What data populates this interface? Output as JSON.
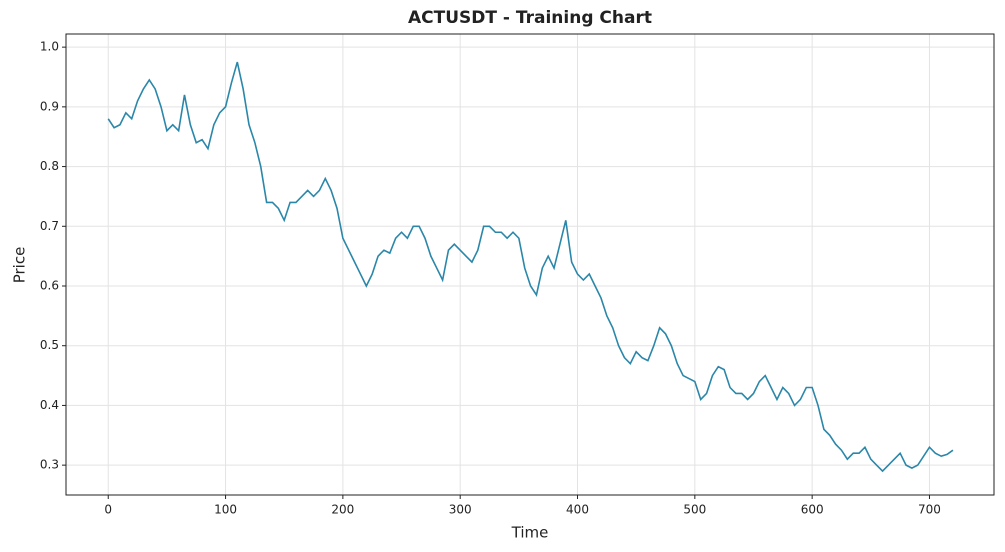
{
  "chart_data": {
    "type": "line",
    "title": "ACTUSDT - Training Chart",
    "x_label": "Time",
    "y_label": "Price",
    "x": [
      0,
      5,
      10,
      15,
      20,
      25,
      30,
      35,
      40,
      45,
      50,
      55,
      60,
      65,
      70,
      75,
      80,
      85,
      90,
      95,
      100,
      105,
      110,
      115,
      120,
      125,
      130,
      135,
      140,
      145,
      150,
      155,
      160,
      165,
      170,
      175,
      180,
      185,
      190,
      195,
      200,
      205,
      210,
      215,
      220,
      225,
      230,
      235,
      240,
      245,
      250,
      255,
      260,
      265,
      270,
      275,
      280,
      285,
      290,
      295,
      300,
      305,
      310,
      315,
      320,
      325,
      330,
      335,
      340,
      345,
      350,
      355,
      360,
      365,
      370,
      375,
      380,
      385,
      390,
      395,
      400,
      405,
      410,
      415,
      420,
      425,
      430,
      435,
      440,
      445,
      450,
      455,
      460,
      465,
      470,
      475,
      480,
      485,
      490,
      495,
      500,
      505,
      510,
      515,
      520,
      525,
      530,
      535,
      540,
      545,
      550,
      555,
      560,
      565,
      570,
      575,
      580,
      585,
      590,
      595,
      600,
      605,
      610,
      615,
      620,
      625,
      630,
      635,
      640,
      645,
      650,
      655,
      660,
      665,
      670,
      675,
      680,
      685,
      690,
      695,
      700,
      705,
      710,
      715,
      720
    ],
    "series": [
      {
        "name": "ACTUSDT",
        "color": "#2b87a9",
        "values": [
          0.88,
          0.865,
          0.87,
          0.89,
          0.88,
          0.91,
          0.93,
          0.945,
          0.93,
          0.9,
          0.86,
          0.87,
          0.86,
          0.92,
          0.87,
          0.84,
          0.845,
          0.83,
          0.87,
          0.89,
          0.9,
          0.94,
          0.975,
          0.93,
          0.87,
          0.84,
          0.8,
          0.74,
          0.74,
          0.73,
          0.71,
          0.74,
          0.74,
          0.75,
          0.76,
          0.75,
          0.76,
          0.78,
          0.76,
          0.73,
          0.68,
          0.66,
          0.64,
          0.62,
          0.6,
          0.62,
          0.65,
          0.66,
          0.655,
          0.68,
          0.69,
          0.68,
          0.7,
          0.7,
          0.68,
          0.65,
          0.63,
          0.61,
          0.66,
          0.67,
          0.66,
          0.65,
          0.64,
          0.66,
          0.7,
          0.7,
          0.69,
          0.69,
          0.68,
          0.69,
          0.68,
          0.63,
          0.6,
          0.585,
          0.63,
          0.65,
          0.63,
          0.67,
          0.71,
          0.64,
          0.62,
          0.61,
          0.62,
          0.6,
          0.58,
          0.55,
          0.53,
          0.5,
          0.48,
          0.47,
          0.49,
          0.48,
          0.475,
          0.5,
          0.53,
          0.52,
          0.5,
          0.47,
          0.45,
          0.445,
          0.44,
          0.41,
          0.42,
          0.45,
          0.465,
          0.46,
          0.43,
          0.42,
          0.42,
          0.41,
          0.42,
          0.44,
          0.45,
          0.43,
          0.41,
          0.43,
          0.42,
          0.4,
          0.41,
          0.43,
          0.43,
          0.4,
          0.36,
          0.35,
          0.335,
          0.325,
          0.31,
          0.32,
          0.32,
          0.33,
          0.31,
          0.3,
          0.29,
          0.3,
          0.31,
          0.32,
          0.3,
          0.295,
          0.3,
          0.315,
          0.33,
          0.32,
          0.315,
          0.318,
          0.325
        ]
      }
    ],
    "xlim": [
      -36,
      755
    ],
    "ylim": [
      0.25,
      1.022
    ],
    "xticks": [
      0,
      100,
      200,
      300,
      400,
      500,
      600,
      700
    ],
    "yticks": [
      0.3,
      0.4,
      0.5,
      0.6,
      0.7,
      0.8,
      0.9,
      {
        "value": 1,
        "label": "1.0"
      }
    ],
    "grid": true
  }
}
